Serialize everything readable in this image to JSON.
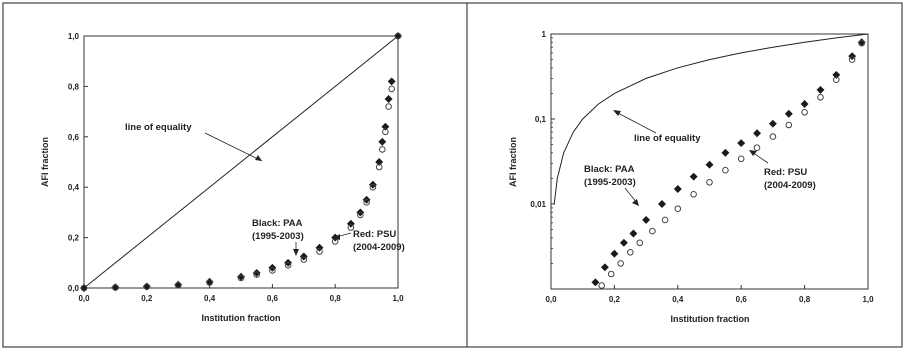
{
  "chart_data": [
    {
      "type": "scatter",
      "xlabel": "Institution fraction",
      "ylabel": "AFI fraction",
      "xlim": [
        0.0,
        1.0
      ],
      "ylim": [
        0.0,
        1.0
      ],
      "yscale": "linear",
      "x_ticks": [
        "0,0",
        "0,2",
        "0,4",
        "0,6",
        "0,8",
        "1,0"
      ],
      "y_ticks": [
        "0,0",
        "0,2",
        "0,4",
        "0,6",
        "0,8",
        "1,0"
      ],
      "grid": false,
      "annotations": {
        "equality": "line of equality",
        "black_line1": "Black: PAA",
        "black_line2": "(1995-2003)",
        "red_line1": "Red: PSU",
        "red_line2": "(2004-2009)"
      },
      "series": [
        {
          "name": "line of equality",
          "style": "line",
          "x": [
            0.0,
            1.0
          ],
          "y": [
            0.0,
            1.0
          ]
        },
        {
          "name": "Black: PAA (1995-2003)",
          "style": "markers",
          "x": [
            0.0,
            0.1,
            0.2,
            0.3,
            0.4,
            0.5,
            0.55,
            0.6,
            0.65,
            0.7,
            0.75,
            0.8,
            0.85,
            0.88,
            0.9,
            0.92,
            0.94,
            0.95,
            0.96,
            0.97,
            0.98,
            1.0
          ],
          "y": [
            0.0,
            0.003,
            0.006,
            0.013,
            0.025,
            0.045,
            0.06,
            0.08,
            0.1,
            0.125,
            0.16,
            0.2,
            0.255,
            0.3,
            0.35,
            0.41,
            0.5,
            0.58,
            0.64,
            0.75,
            0.82,
            1.0
          ]
        },
        {
          "name": "Red: PSU (2004-2009)",
          "style": "markers",
          "x": [
            0.0,
            0.1,
            0.2,
            0.3,
            0.4,
            0.5,
            0.55,
            0.6,
            0.65,
            0.7,
            0.75,
            0.8,
            0.85,
            0.88,
            0.9,
            0.92,
            0.94,
            0.95,
            0.96,
            0.97,
            0.98,
            1.0
          ],
          "y": [
            0.0,
            0.002,
            0.005,
            0.011,
            0.022,
            0.04,
            0.053,
            0.07,
            0.09,
            0.113,
            0.145,
            0.185,
            0.24,
            0.29,
            0.34,
            0.4,
            0.48,
            0.55,
            0.62,
            0.72,
            0.79,
            1.0
          ]
        }
      ]
    },
    {
      "type": "scatter",
      "xlabel": "Institution fraction",
      "ylabel": "AFI fraction",
      "xlim": [
        0.0,
        1.0
      ],
      "ylim": [
        0.001,
        1.0
      ],
      "yscale": "log",
      "x_ticks": [
        "0,0",
        "0,2",
        "0,4",
        "0,6",
        "0,8",
        "1,0"
      ],
      "y_ticks": [
        "0,01",
        "0,1",
        "1"
      ],
      "grid": false,
      "annotations": {
        "equality": "line of equality",
        "black_line1": "Black: PAA",
        "black_line2": "(1995-2003)",
        "red_line1": "Red: PSU",
        "red_line2": "(2004-2009)"
      },
      "series": [
        {
          "name": "line of equality",
          "style": "line",
          "x": [
            0.01,
            0.02,
            0.04,
            0.07,
            0.1,
            0.15,
            0.2,
            0.3,
            0.4,
            0.5,
            0.6,
            0.7,
            0.8,
            0.9,
            1.0
          ],
          "y": [
            0.01,
            0.02,
            0.04,
            0.07,
            0.1,
            0.15,
            0.2,
            0.3,
            0.4,
            0.5,
            0.6,
            0.7,
            0.8,
            0.9,
            1.0
          ]
        },
        {
          "name": "Black: PAA (1995-2003)",
          "style": "markers",
          "x": [
            0.14,
            0.17,
            0.2,
            0.23,
            0.26,
            0.3,
            0.35,
            0.4,
            0.45,
            0.5,
            0.55,
            0.6,
            0.65,
            0.7,
            0.75,
            0.8,
            0.85,
            0.9,
            0.95,
            0.98
          ],
          "y": [
            0.0012,
            0.0018,
            0.0026,
            0.0035,
            0.0045,
            0.0065,
            0.01,
            0.015,
            0.021,
            0.029,
            0.04,
            0.052,
            0.068,
            0.088,
            0.115,
            0.15,
            0.22,
            0.33,
            0.55,
            0.8
          ]
        },
        {
          "name": "Red: PSU (2004-2009)",
          "style": "markers",
          "x": [
            0.16,
            0.19,
            0.22,
            0.25,
            0.28,
            0.32,
            0.36,
            0.4,
            0.45,
            0.5,
            0.55,
            0.6,
            0.65,
            0.7,
            0.75,
            0.8,
            0.85,
            0.9,
            0.95,
            0.98
          ],
          "y": [
            0.0011,
            0.0015,
            0.002,
            0.0027,
            0.0035,
            0.0048,
            0.0065,
            0.0088,
            0.013,
            0.018,
            0.025,
            0.034,
            0.046,
            0.062,
            0.085,
            0.12,
            0.18,
            0.29,
            0.5,
            0.78
          ]
        }
      ]
    }
  ]
}
